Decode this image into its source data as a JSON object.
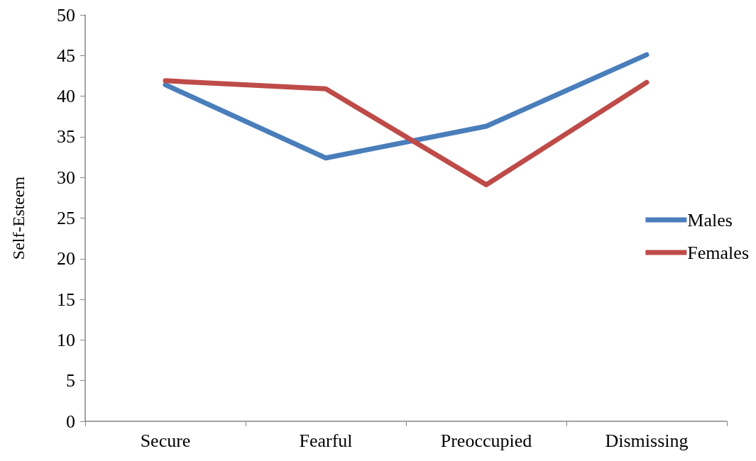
{
  "chart_data": {
    "type": "line",
    "ylabel": "Self-Esteem",
    "categories": [
      "Secure",
      "Fearful",
      "Preoccupied",
      "Dismissing"
    ],
    "series": [
      {
        "name": "Males",
        "color": "#4a7ebb",
        "values": [
          41.4,
          32.4,
          36.3,
          45.1
        ]
      },
      {
        "name": "Females",
        "color": "#be4b48",
        "values": [
          41.9,
          40.9,
          29.1,
          41.7
        ]
      }
    ],
    "ylim": [
      0,
      50
    ],
    "yticks": [
      0,
      5,
      10,
      15,
      20,
      25,
      30,
      35,
      40,
      45,
      50
    ],
    "grid": false,
    "legend": "right",
    "marker": "none",
    "line_style": "solid"
  }
}
